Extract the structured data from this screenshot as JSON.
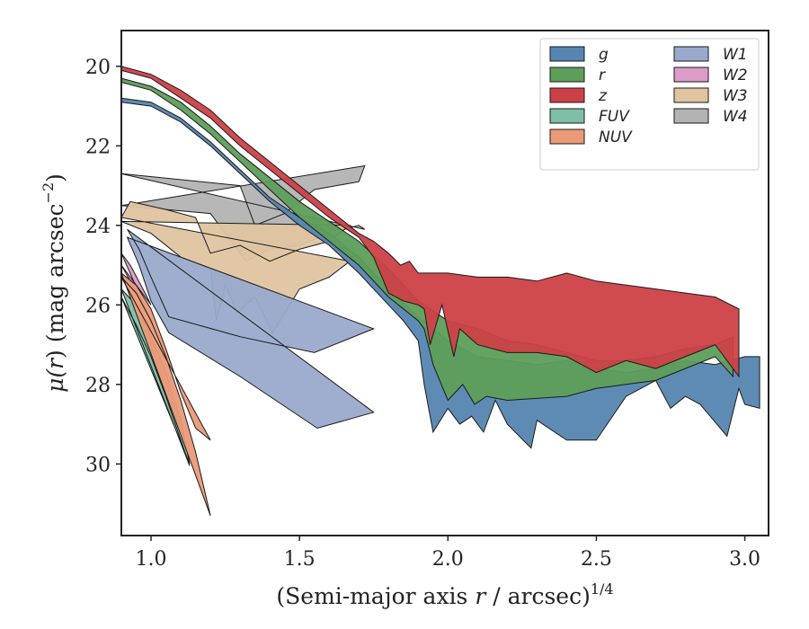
{
  "chart_data": {
    "type": "area",
    "xlabel": {
      "prefix": "(Semi-major axis ",
      "var": "r",
      "mid": " / arcsec)",
      "sup": "1/4"
    },
    "ylabel": {
      "prefix": "μ(",
      "var": "r",
      "mid": ") (mag arcsec",
      "sup": "−2",
      "suffix": ")"
    },
    "xlim": [
      0.9,
      3.08
    ],
    "ylim": [
      31.8,
      19.1
    ],
    "x_ticks": [
      1.0,
      1.5,
      2.0,
      2.5,
      3.0
    ],
    "x_tick_labels": [
      "1.0",
      "1.5",
      "2.0",
      "2.5",
      "3.0"
    ],
    "y_ticks": [
      20,
      22,
      24,
      26,
      28,
      30
    ],
    "y_tick_labels": [
      "20",
      "22",
      "24",
      "26",
      "28",
      "30"
    ],
    "grid": false,
    "legend_position": "top-right",
    "series": [
      {
        "name": "W4",
        "color": "#b3b3b3",
        "upper": [
          [
            0.9,
            22.7
          ],
          [
            1.3,
            23.0
          ],
          [
            1.35,
            24.0
          ],
          [
            1.45,
            23.7
          ],
          [
            1.55,
            23.1
          ],
          [
            1.7,
            22.9
          ],
          [
            1.72,
            22.5
          ]
        ],
        "lower": [
          [
            0.9,
            23.5
          ],
          [
            1.2,
            23.7
          ],
          [
            1.32,
            24.9
          ],
          [
            1.4,
            24.6
          ],
          [
            1.5,
            24.5
          ],
          [
            1.6,
            24.2
          ],
          [
            1.7,
            24.0
          ],
          [
            1.72,
            24.1
          ]
        ]
      },
      {
        "name": "W3",
        "color": "#dfc4a0",
        "upper": [
          [
            0.9,
            23.8
          ],
          [
            0.93,
            23.4
          ],
          [
            1.05,
            23.6
          ],
          [
            1.15,
            23.8
          ],
          [
            1.2,
            24.7
          ],
          [
            1.3,
            24.5
          ],
          [
            1.4,
            24.9
          ],
          [
            1.5,
            24.6
          ],
          [
            1.6,
            24.4
          ],
          [
            1.67,
            24.0
          ]
        ],
        "lower": [
          [
            0.9,
            23.9
          ],
          [
            1.0,
            24.2
          ],
          [
            1.1,
            24.8
          ],
          [
            1.2,
            25.1
          ],
          [
            1.22,
            26.4
          ],
          [
            1.25,
            25.5
          ],
          [
            1.29,
            26.2
          ],
          [
            1.35,
            25.8
          ],
          [
            1.41,
            26.7
          ],
          [
            1.5,
            25.6
          ],
          [
            1.6,
            25.3
          ],
          [
            1.67,
            24.9
          ]
        ]
      },
      {
        "name": "W1",
        "color": "#9aaacc",
        "upper": [
          [
            0.92,
            24.1
          ],
          [
            0.96,
            24.6
          ],
          [
            1.0,
            25.3
          ],
          [
            1.06,
            26.3
          ],
          [
            1.3,
            26.8
          ],
          [
            1.55,
            27.2
          ],
          [
            1.75,
            26.6
          ]
        ],
        "lower": [
          [
            0.92,
            24.3
          ],
          [
            0.96,
            25.0
          ],
          [
            1.0,
            25.9
          ],
          [
            1.06,
            26.7
          ],
          [
            1.3,
            27.8
          ],
          [
            1.56,
            29.1
          ],
          [
            1.75,
            28.7
          ]
        ]
      },
      {
        "name": "W2",
        "color": "#dc9bc8",
        "upper": [
          [
            0.9,
            24.7
          ],
          [
            0.93,
            25.0
          ],
          [
            0.98,
            25.7
          ],
          [
            1.0,
            26.0
          ]
        ],
        "lower": [
          [
            0.9,
            25.0
          ],
          [
            0.93,
            25.4
          ],
          [
            0.98,
            26.1
          ],
          [
            1.0,
            26.4
          ]
        ]
      },
      {
        "name": "FUV",
        "color": "#7ebfa6",
        "upper": [
          [
            0.9,
            25.6
          ],
          [
            0.95,
            26.0
          ],
          [
            1.0,
            26.8
          ],
          [
            1.05,
            27.7
          ],
          [
            1.1,
            28.9
          ],
          [
            1.13,
            30.0
          ]
        ],
        "lower": [
          [
            0.9,
            25.8
          ],
          [
            0.95,
            26.5
          ],
          [
            1.0,
            27.3
          ],
          [
            1.05,
            28.3
          ],
          [
            1.1,
            29.4
          ],
          [
            1.13,
            30.05
          ]
        ]
      },
      {
        "name": "NUV",
        "color": "#eb9a78",
        "upper": [
          [
            0.9,
            25.2
          ],
          [
            0.95,
            25.5
          ],
          [
            1.0,
            26.1
          ],
          [
            1.05,
            27.1
          ],
          [
            1.1,
            28.2
          ],
          [
            1.15,
            29.1
          ],
          [
            1.2,
            29.4
          ]
        ],
        "lower": [
          [
            0.9,
            25.3
          ],
          [
            0.95,
            25.7
          ],
          [
            1.0,
            26.4
          ],
          [
            1.05,
            27.3
          ],
          [
            1.1,
            28.4
          ],
          [
            1.15,
            29.7
          ],
          [
            1.2,
            31.3
          ]
        ]
      },
      {
        "name": "g",
        "color": "#5585b0",
        "upper": [
          [
            0.9,
            20.8
          ],
          [
            1.0,
            20.9
          ],
          [
            1.1,
            21.3
          ],
          [
            1.2,
            21.9
          ],
          [
            1.3,
            22.6
          ],
          [
            1.4,
            23.3
          ],
          [
            1.5,
            23.8
          ],
          [
            1.6,
            24.2
          ],
          [
            1.7,
            24.8
          ],
          [
            1.8,
            25.6
          ],
          [
            1.9,
            26.3
          ],
          [
            2.0,
            26.9
          ],
          [
            2.1,
            27.3
          ],
          [
            2.2,
            27.4
          ],
          [
            2.3,
            27.5
          ],
          [
            2.4,
            27.4
          ],
          [
            2.5,
            27.6
          ],
          [
            2.6,
            27.7
          ],
          [
            2.7,
            27.6
          ],
          [
            2.8,
            27.4
          ],
          [
            2.9,
            27.5
          ],
          [
            3.0,
            27.3
          ],
          [
            3.05,
            27.3
          ]
        ],
        "lower": [
          [
            3.05,
            28.6
          ],
          [
            3.0,
            28.5
          ],
          [
            2.98,
            28.1
          ],
          [
            2.94,
            29.3
          ],
          [
            2.85,
            28.5
          ],
          [
            2.8,
            28.3
          ],
          [
            2.75,
            28.6
          ],
          [
            2.7,
            27.9
          ],
          [
            2.6,
            28.3
          ],
          [
            2.5,
            29.4
          ],
          [
            2.4,
            29.4
          ],
          [
            2.3,
            28.9
          ],
          [
            2.28,
            29.6
          ],
          [
            2.2,
            29.0
          ],
          [
            2.16,
            28.4
          ],
          [
            2.12,
            29.2
          ],
          [
            2.08,
            28.8
          ],
          [
            2.04,
            29.0
          ],
          [
            2.0,
            28.6
          ],
          [
            1.95,
            29.2
          ],
          [
            1.92,
            28.0
          ],
          [
            1.9,
            26.9
          ],
          [
            1.85,
            26.4
          ],
          [
            1.8,
            26.0
          ],
          [
            1.7,
            25.2
          ],
          [
            1.6,
            24.5
          ],
          [
            1.5,
            24.0
          ],
          [
            1.4,
            23.4
          ],
          [
            1.3,
            22.7
          ],
          [
            1.2,
            22.0
          ],
          [
            1.1,
            21.4
          ],
          [
            1.0,
            21.0
          ],
          [
            0.9,
            20.9
          ]
        ]
      },
      {
        "name": "r",
        "color": "#5d9e5a",
        "upper": [
          [
            0.9,
            20.3
          ],
          [
            1.0,
            20.5
          ],
          [
            1.1,
            20.9
          ],
          [
            1.2,
            21.5
          ],
          [
            1.3,
            22.2
          ],
          [
            1.4,
            22.8
          ],
          [
            1.5,
            23.4
          ],
          [
            1.6,
            23.9
          ],
          [
            1.7,
            24.4
          ],
          [
            1.8,
            25.1
          ],
          [
            1.9,
            25.9
          ],
          [
            2.0,
            26.4
          ],
          [
            2.1,
            26.6
          ],
          [
            2.2,
            26.9
          ],
          [
            2.3,
            27.0
          ],
          [
            2.4,
            27.2
          ],
          [
            2.5,
            27.4
          ],
          [
            2.6,
            27.4
          ],
          [
            2.7,
            27.3
          ],
          [
            2.8,
            27.1
          ],
          [
            2.9,
            27.0
          ],
          [
            2.96,
            26.8
          ]
        ],
        "lower": [
          [
            2.96,
            27.8
          ],
          [
            2.9,
            27.3
          ],
          [
            2.8,
            27.6
          ],
          [
            2.7,
            27.9
          ],
          [
            2.6,
            28.0
          ],
          [
            2.5,
            28.1
          ],
          [
            2.4,
            28.3
          ],
          [
            2.2,
            28.4
          ],
          [
            2.13,
            28.3
          ],
          [
            2.09,
            28.5
          ],
          [
            2.05,
            28.0
          ],
          [
            2.0,
            28.4
          ],
          [
            1.95,
            27.5
          ],
          [
            1.92,
            26.6
          ],
          [
            1.9,
            26.4
          ],
          [
            1.8,
            25.8
          ],
          [
            1.7,
            25.0
          ],
          [
            1.6,
            24.4
          ],
          [
            1.5,
            23.8
          ],
          [
            1.4,
            23.1
          ],
          [
            1.3,
            22.4
          ],
          [
            1.2,
            21.7
          ],
          [
            1.1,
            21.1
          ],
          [
            1.0,
            20.6
          ],
          [
            0.9,
            20.4
          ]
        ]
      },
      {
        "name": "z",
        "color": "#cc4147",
        "upper": [
          [
            0.9,
            20.0
          ],
          [
            1.0,
            20.2
          ],
          [
            1.1,
            20.6
          ],
          [
            1.2,
            21.1
          ],
          [
            1.3,
            21.8
          ],
          [
            1.4,
            22.4
          ],
          [
            1.5,
            23.0
          ],
          [
            1.6,
            23.6
          ],
          [
            1.7,
            24.2
          ],
          [
            1.75,
            24.4
          ],
          [
            1.8,
            24.7
          ],
          [
            1.84,
            25.0
          ],
          [
            1.87,
            24.9
          ],
          [
            1.9,
            25.2
          ],
          [
            2.0,
            25.2
          ],
          [
            2.1,
            25.3
          ],
          [
            2.2,
            25.3
          ],
          [
            2.3,
            25.4
          ],
          [
            2.4,
            25.2
          ],
          [
            2.5,
            25.4
          ],
          [
            2.6,
            25.5
          ],
          [
            2.7,
            25.6
          ],
          [
            2.8,
            25.7
          ],
          [
            2.9,
            25.8
          ],
          [
            2.98,
            26.1
          ]
        ],
        "lower": [
          [
            2.98,
            27.8
          ],
          [
            2.9,
            27.0
          ],
          [
            2.8,
            27.3
          ],
          [
            2.7,
            27.6
          ],
          [
            2.6,
            27.4
          ],
          [
            2.5,
            27.7
          ],
          [
            2.4,
            27.3
          ],
          [
            2.3,
            27.2
          ],
          [
            2.2,
            27.2
          ],
          [
            2.1,
            27.0
          ],
          [
            2.04,
            26.6
          ],
          [
            2.02,
            27.3
          ],
          [
            1.98,
            26.0
          ],
          [
            1.94,
            27.0
          ],
          [
            1.92,
            26.1
          ],
          [
            1.9,
            26.0
          ],
          [
            1.85,
            25.9
          ],
          [
            1.8,
            25.7
          ],
          [
            1.75,
            24.8
          ],
          [
            1.7,
            24.3
          ],
          [
            1.6,
            23.8
          ],
          [
            1.5,
            23.2
          ],
          [
            1.4,
            22.6
          ],
          [
            1.3,
            22.0
          ],
          [
            1.2,
            21.3
          ],
          [
            1.1,
            20.8
          ],
          [
            1.0,
            20.3
          ],
          [
            0.9,
            20.1
          ]
        ]
      }
    ],
    "legend_order": [
      "g",
      "r",
      "z",
      "FUV",
      "NUV",
      "W1",
      "W2",
      "W3",
      "W4"
    ]
  }
}
